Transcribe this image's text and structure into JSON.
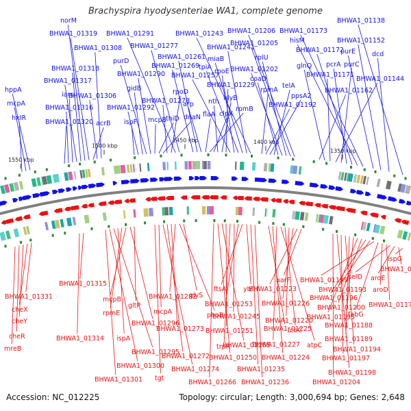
{
  "title": "Brachyspira hyodysenteriae WA1, complete genome",
  "footer": {
    "accession": "Accession: NC_012225",
    "summary": "Topology: circular; Length: 3,000,694 bp; Genes: 2,648"
  },
  "colors": {
    "forward": "#1010ee",
    "reverse": "#ee1111",
    "backbone": "#808080",
    "tick": "#2a8a2a"
  },
  "ticks": [
    "1350 kbp",
    "1400 kbp",
    "1450 kbp",
    "1500 kbp",
    "1550 kbp"
  ],
  "forward_labels": [
    "BHWA1_01138",
    "dcd",
    "BHWA1_01152",
    "purE",
    "BHWA1_01173",
    "hisM",
    "BHWA1_01172",
    "pcrA",
    "purC",
    "BHWA1_01144",
    "BHWA1_01171",
    "glnQ",
    "BHWA1_01162",
    "BHWA1_01206",
    "BHWA1_01205",
    "rplU",
    "BHWA1_01202",
    "coaD",
    "telA",
    "ppsA2",
    "BHWA1_01192",
    "rpmA",
    "BHWA1_01243",
    "BHWA1_01241",
    "miaB",
    "tpiA",
    "rpoE",
    "BHWA1_01257",
    "BHWA1_01229",
    "hlyB",
    "nth",
    "clpX",
    "rpmB",
    "flaA",
    "arp",
    "BHWA1_01261",
    "BHWA1_01269",
    "BHWA1_01277",
    "BHWA1_01291",
    "rpoD",
    "BHWA1_01278",
    "dnaN",
    "thiD",
    "mcpB",
    "BHWA1_01290",
    "purD",
    "gidB",
    "BHWA1_01292",
    "ispF",
    "BHWA1_01308",
    "BHWA1_01306",
    "acrB",
    "BHWA1_01319",
    "norM",
    "BHWA1_01318",
    "BHWA1_01317",
    "iars",
    "BHWA1_01316",
    "BHWA1_01320",
    "hppA",
    "mcpA",
    "hxIR"
  ],
  "reverse_labels": [
    "ispG",
    "BHWA1_01169",
    "aroE",
    "seID",
    "BHWA1_01177",
    "aroD",
    "fabG",
    "BHWA1_01199",
    "BHWA1_01193",
    "BHWA1_01196",
    "BHWA1_01200",
    "BHWA1_01195",
    "BHWA1_01188",
    "BHWA1_01189",
    "BHWA1_01194",
    "BHWA1_01197",
    "BHWA1_01198",
    "BHWA1_01204",
    "aarF",
    "BHWA1_01223",
    "BHWA1_01226",
    "BHWA1_01220",
    "fcbC",
    "atpC",
    "BHWA1_01227",
    "BHWA1_01224",
    "BHWA1_01225",
    "BHWA1_01236",
    "BHWA1_01235",
    "ybfH",
    "ftsA",
    "BHWA1_01253",
    "BHWA1_01245",
    "trpR",
    "BHWA1_01251",
    "BHWA1_01255",
    "BHWA1_01250",
    "BHWA1_01266",
    "glyS",
    "phoB",
    "BHWA1_01282",
    "BHWA1_01273",
    "BHWA1_01272",
    "BHWA1_01274",
    "mcpA",
    "tgt",
    "gltP",
    "BHWA1_01296",
    "mcpB",
    "rpmE",
    "ispA",
    "BHWA1_01295",
    "BHWA1_01300",
    "BHWA1_01301",
    "BHWA1_01315",
    "BHWA1_01314",
    "BHWA1_01331",
    "cheX",
    "cheY",
    "cheR",
    "mreB"
  ]
}
